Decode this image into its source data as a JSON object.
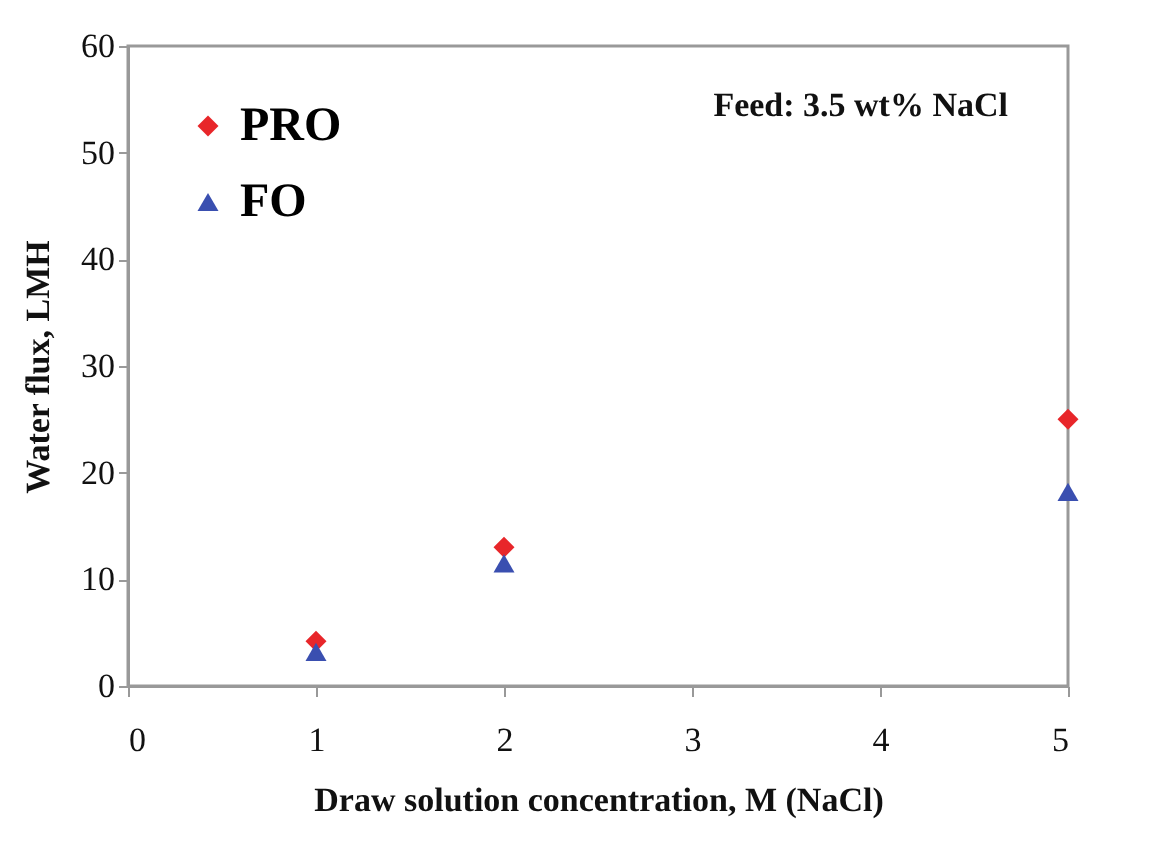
{
  "chart_data": {
    "type": "scatter",
    "xlabel": "Draw solution concentration, M (NaCl)",
    "ylabel": "Water flux, LMH",
    "x": [
      1,
      2,
      5
    ],
    "series": [
      {
        "name": "PRO",
        "color": "#e8262a",
        "marker": "diamond",
        "values": [
          4.2,
          13,
          25
        ]
      },
      {
        "name": "FO",
        "color": "#3a4fb0",
        "marker": "triangle",
        "values": [
          3.2,
          11.5,
          18.2
        ]
      }
    ],
    "xlim": [
      0,
      5
    ],
    "xticks": [
      0,
      1,
      2,
      3,
      4,
      5
    ],
    "ylim": [
      0,
      60
    ],
    "yticks": [
      0,
      10,
      20,
      30,
      40,
      50,
      60
    ],
    "grid": false,
    "legend": "top left",
    "annotations": [
      "Feed: 3.5 wt% NaCl"
    ]
  }
}
